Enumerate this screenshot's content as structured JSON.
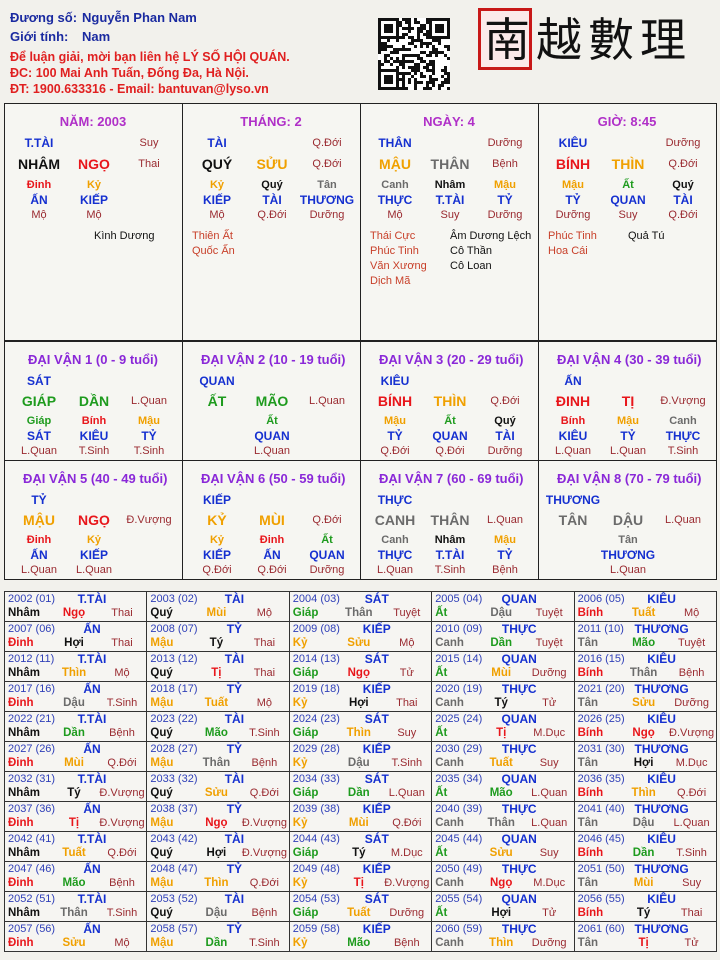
{
  "header": {
    "name_label": "Đương số:",
    "name": "Nguyễn Phan Nam",
    "gender_label": "Giới tính:",
    "gender": "Nam",
    "contact_1": "Để luận giải, mời bạn liên hệ LÝ SỐ HỘI QUÁN.",
    "contact_2": "ĐC: 100 Mai Anh Tuấn, Đống Đa, Hà Nội.",
    "contact_3": "ĐT: 1900.633316 - Email: bantuvan@lyso.vn",
    "logo": "南越數理"
  },
  "element_colors": [
    {
      "color": "#111111",
      "words": [
        "Nhâm",
        "Quý",
        "Tý",
        "Hợi"
      ]
    },
    {
      "color": "#1e9b1e",
      "words": [
        "Giáp",
        "Ất",
        "Dần",
        "Mão"
      ]
    },
    {
      "color": "#e8161b",
      "words": [
        "Bính",
        "Đinh",
        "Tị",
        "Ngọ"
      ]
    },
    {
      "color": "#f0a000",
      "words": [
        "Mậu",
        "Kỷ",
        "Thìn",
        "Tuất",
        "Sửu",
        "Mùi"
      ]
    },
    {
      "color": "#6b6b6b",
      "words": [
        "Canh",
        "Tân",
        "Thân",
        "Dậu"
      ]
    }
  ],
  "pillars": [
    {
      "title": "NĂM: 2003",
      "god": "T.TÀI",
      "stage_top": "Suy",
      "stem": "NHÂM",
      "branch": "NGỌ",
      "stage": "Thai",
      "hidden": [
        "Đinh",
        "Kỷ"
      ],
      "hidden_gods": [
        "ẤN",
        "KIẾP"
      ],
      "hidden_stages": [
        "Mộ",
        "Mộ"
      ],
      "stars_right": [
        {
          "text": "Kình Dương",
          "color": "#111111"
        }
      ]
    },
    {
      "title": "THÁNG: 2",
      "god": "TÀI",
      "stage_top": "Q.Đới",
      "stem": "QUÝ",
      "branch": "SỬU",
      "stage": "Q.Đới",
      "hidden": [
        "Kỷ",
        "Quý",
        "Tân"
      ],
      "hidden_gods": [
        "KIẾP",
        "TÀI",
        "THƯƠNG"
      ],
      "hidden_stages": [
        "Mộ",
        "Q.Đới",
        "Dưỡng"
      ],
      "stars_left": [
        {
          "text": "Thiên Ất",
          "color": "#c8402a"
        },
        {
          "text": "Quốc Ấn",
          "color": "#c8402a"
        }
      ]
    },
    {
      "title": "NGÀY: 4",
      "god": "THÂN",
      "stage_top": "Dưỡng",
      "stem": "MẬU",
      "branch": "THÂN",
      "stage": "Bệnh",
      "hidden": [
        "Canh",
        "Nhâm",
        "Mậu"
      ],
      "hidden_gods": [
        "THỰC",
        "T.TÀI",
        "TỶ"
      ],
      "hidden_stages": [
        "Mộ",
        "Suy",
        "Dưỡng"
      ],
      "stars_left": [
        {
          "text": "Thái Cực",
          "color": "#c8402a"
        },
        {
          "text": "Phúc Tinh",
          "color": "#c8402a"
        },
        {
          "text": "Văn Xương",
          "color": "#c8402a"
        },
        {
          "text": "Dịch Mã",
          "color": "#c8402a"
        }
      ],
      "stars_right": [
        {
          "text": "Âm Dương Lệch",
          "color": "#111111"
        },
        {
          "text": "Cô Thần",
          "color": "#111111"
        },
        {
          "text": "Cô Loan",
          "color": "#111111"
        }
      ]
    },
    {
      "title": "GIỜ: 8:45",
      "god": "KIÊU",
      "stage_top": "Dưỡng",
      "stem": "BÍNH",
      "branch": "THÌN",
      "stage": "Q.Đới",
      "hidden": [
        "Mậu",
        "Ất",
        "Quý"
      ],
      "hidden_gods": [
        "TỶ",
        "QUAN",
        "TÀI"
      ],
      "hidden_stages": [
        "Dưỡng",
        "Suy",
        "Q.Đới"
      ],
      "stars_left": [
        {
          "text": "Phúc Tinh",
          "color": "#c8402a"
        },
        {
          "text": "Hoa Cái",
          "color": "#c8402a"
        }
      ],
      "stars_right": [
        {
          "text": "Quả Tú",
          "color": "#111111"
        }
      ]
    }
  ],
  "dai_van": [
    {
      "title": "ĐẠI VẬN 1 (0 - 9 tuổi)",
      "god": "SÁT",
      "stem": "GIÁP",
      "branch": "DẦN",
      "stage": "L.Quan",
      "hidden": [
        "Giáp",
        "Bính",
        "Mậu"
      ],
      "hidden_gods": [
        "SÁT",
        "KIÊU",
        "TỶ"
      ],
      "hidden_stages": [
        "L.Quan",
        "T.Sinh",
        "T.Sinh"
      ]
    },
    {
      "title": "ĐẠI VẬN 2 (10 - 19 tuổi)",
      "god": "QUAN",
      "stem": "ẤT",
      "branch": "MÃO",
      "stage": "L.Quan",
      "hidden": [
        "Ất"
      ],
      "hidden_gods": [
        "QUAN"
      ],
      "hidden_stages": [
        "L.Quan"
      ]
    },
    {
      "title": "ĐẠI VẬN 3 (20 - 29 tuổi)",
      "god": "KIÊU",
      "stem": "BÍNH",
      "branch": "THÌN",
      "stage": "Q.Đới",
      "hidden": [
        "Mậu",
        "Ất",
        "Quý"
      ],
      "hidden_gods": [
        "TỶ",
        "QUAN",
        "TÀI"
      ],
      "hidden_stages": [
        "Q.Đới",
        "Q.Đới",
        "Dưỡng"
      ]
    },
    {
      "title": "ĐẠI VẬN 4 (30 - 39 tuổi)",
      "god": "ẤN",
      "stem": "ĐINH",
      "branch": "TỊ",
      "stage": "Đ.Vượng",
      "hidden": [
        "Bính",
        "Mậu",
        "Canh"
      ],
      "hidden_gods": [
        "KIÊU",
        "TỶ",
        "THỰC"
      ],
      "hidden_stages": [
        "L.Quan",
        "L.Quan",
        "T.Sinh"
      ]
    },
    {
      "title": "ĐẠI VẬN 5 (40 - 49 tuổi)",
      "god": "TỶ",
      "stem": "MẬU",
      "branch": "NGỌ",
      "stage": "Đ.Vượng",
      "hidden": [
        "Đinh",
        "Kỷ"
      ],
      "hidden_gods": [
        "ẤN",
        "KIẾP"
      ],
      "hidden_stages": [
        "L.Quan",
        "L.Quan"
      ]
    },
    {
      "title": "ĐẠI VẬN 6 (50 - 59 tuổi)",
      "god": "KIẾP",
      "stem": "KỶ",
      "branch": "MÙI",
      "stage": "Q.Đới",
      "hidden": [
        "Kỷ",
        "Đinh",
        "Ất"
      ],
      "hidden_gods": [
        "KIẾP",
        "ẤN",
        "QUAN"
      ],
      "hidden_stages": [
        "Q.Đới",
        "Q.Đới",
        "Dưỡng"
      ]
    },
    {
      "title": "ĐẠI VẬN 7 (60 - 69 tuổi)",
      "god": "THỰC",
      "stem": "CANH",
      "branch": "THÂN",
      "stage": "L.Quan",
      "hidden": [
        "Canh",
        "Nhâm",
        "Mậu"
      ],
      "hidden_gods": [
        "THỰC",
        "T.TÀI",
        "TỶ"
      ],
      "hidden_stages": [
        "L.Quan",
        "T.Sinh",
        "Bệnh"
      ]
    },
    {
      "title": "ĐẠI VẬN 8 (70 - 79 tuổi)",
      "god": "THƯƠNG",
      "stem": "TÂN",
      "branch": "DẬU",
      "stage": "L.Quan",
      "hidden": [
        "Tân"
      ],
      "hidden_gods": [
        "THƯƠNG"
      ],
      "hidden_stages": [
        "L.Quan"
      ]
    }
  ],
  "years": [
    [
      "2002 (01)",
      "T.TÀI",
      "Nhâm",
      "Ngọ",
      "Thai"
    ],
    [
      "2003 (02)",
      "TÀI",
      "Quý",
      "Mùi",
      "Mộ"
    ],
    [
      "2004 (03)",
      "SÁT",
      "Giáp",
      "Thân",
      "Tuyệt"
    ],
    [
      "2005 (04)",
      "QUAN",
      "Ất",
      "Dậu",
      "Tuyệt"
    ],
    [
      "2006 (05)",
      "KIÊU",
      "Bính",
      "Tuất",
      "Mộ"
    ],
    [
      "2007 (06)",
      "ẤN",
      "Đinh",
      "Hợi",
      "Thai"
    ],
    [
      "2008 (07)",
      "TỶ",
      "Mậu",
      "Tý",
      "Thai"
    ],
    [
      "2009 (08)",
      "KIẾP",
      "Kỷ",
      "Sửu",
      "Mộ"
    ],
    [
      "2010 (09)",
      "THỰC",
      "Canh",
      "Dần",
      "Tuyệt"
    ],
    [
      "2011 (10)",
      "THƯƠNG",
      "Tân",
      "Mão",
      "Tuyệt"
    ],
    [
      "2012 (11)",
      "T.TÀI",
      "Nhâm",
      "Thìn",
      "Mộ"
    ],
    [
      "2013 (12)",
      "TÀI",
      "Quý",
      "Tị",
      "Thai"
    ],
    [
      "2014 (13)",
      "SÁT",
      "Giáp",
      "Ngọ",
      "Tử"
    ],
    [
      "2015 (14)",
      "QUAN",
      "Ất",
      "Mùi",
      "Dưỡng"
    ],
    [
      "2016 (15)",
      "KIÊU",
      "Bính",
      "Thân",
      "Bệnh"
    ],
    [
      "2017 (16)",
      "ẤN",
      "Đinh",
      "Dậu",
      "T.Sinh"
    ],
    [
      "2018 (17)",
      "TỶ",
      "Mậu",
      "Tuất",
      "Mộ"
    ],
    [
      "2019 (18)",
      "KIẾP",
      "Kỷ",
      "Hợi",
      "Thai"
    ],
    [
      "2020 (19)",
      "THỰC",
      "Canh",
      "Tý",
      "Tử"
    ],
    [
      "2021 (20)",
      "THƯƠNG",
      "Tân",
      "Sửu",
      "Dưỡng"
    ],
    [
      "2022 (21)",
      "T.TÀI",
      "Nhâm",
      "Dần",
      "Bệnh"
    ],
    [
      "2023 (22)",
      "TÀI",
      "Quý",
      "Mão",
      "T.Sinh"
    ],
    [
      "2024 (23)",
      "SÁT",
      "Giáp",
      "Thìn",
      "Suy"
    ],
    [
      "2025 (24)",
      "QUAN",
      "Ất",
      "Tị",
      "M.Dục"
    ],
    [
      "2026 (25)",
      "KIÊU",
      "Bính",
      "Ngọ",
      "Đ.Vượng"
    ],
    [
      "2027 (26)",
      "ẤN",
      "Đinh",
      "Mùi",
      "Q.Đới"
    ],
    [
      "2028 (27)",
      "TỶ",
      "Mậu",
      "Thân",
      "Bệnh"
    ],
    [
      "2029 (28)",
      "KIẾP",
      "Kỷ",
      "Dậu",
      "T.Sinh"
    ],
    [
      "2030 (29)",
      "THỰC",
      "Canh",
      "Tuất",
      "Suy"
    ],
    [
      "2031 (30)",
      "THƯƠNG",
      "Tân",
      "Hợi",
      "M.Dục"
    ],
    [
      "2032 (31)",
      "T.TÀI",
      "Nhâm",
      "Tý",
      "Đ.Vượng"
    ],
    [
      "2033 (32)",
      "TÀI",
      "Quý",
      "Sửu",
      "Q.Đới"
    ],
    [
      "2034 (33)",
      "SÁT",
      "Giáp",
      "Dần",
      "L.Quan"
    ],
    [
      "2035 (34)",
      "QUAN",
      "Ất",
      "Mão",
      "L.Quan"
    ],
    [
      "2036 (35)",
      "KIÊU",
      "Bính",
      "Thìn",
      "Q.Đới"
    ],
    [
      "2037 (36)",
      "ẤN",
      "Đinh",
      "Tị",
      "Đ.Vượng"
    ],
    [
      "2038 (37)",
      "TỶ",
      "Mậu",
      "Ngọ",
      "Đ.Vượng"
    ],
    [
      "2039 (38)",
      "KIẾP",
      "Kỷ",
      "Mùi",
      "Q.Đới"
    ],
    [
      "2040 (39)",
      "THỰC",
      "Canh",
      "Thân",
      "L.Quan"
    ],
    [
      "2041 (40)",
      "THƯƠNG",
      "Tân",
      "Dậu",
      "L.Quan"
    ],
    [
      "2042 (41)",
      "T.TÀI",
      "Nhâm",
      "Tuất",
      "Q.Đới"
    ],
    [
      "2043 (42)",
      "TÀI",
      "Quý",
      "Hợi",
      "Đ.Vượng"
    ],
    [
      "2044 (43)",
      "SÁT",
      "Giáp",
      "Tý",
      "M.Dục"
    ],
    [
      "2045 (44)",
      "QUAN",
      "Ất",
      "Sửu",
      "Suy"
    ],
    [
      "2046 (45)",
      "KIÊU",
      "Bính",
      "Dần",
      "T.Sinh"
    ],
    [
      "2047 (46)",
      "ẤN",
      "Đinh",
      "Mão",
      "Bệnh"
    ],
    [
      "2048 (47)",
      "TỶ",
      "Mậu",
      "Thìn",
      "Q.Đới"
    ],
    [
      "2049 (48)",
      "KIẾP",
      "Kỷ",
      "Tị",
      "Đ.Vượng"
    ],
    [
      "2050 (49)",
      "THỰC",
      "Canh",
      "Ngọ",
      "M.Dục"
    ],
    [
      "2051 (50)",
      "THƯƠNG",
      "Tân",
      "Mùi",
      "Suy"
    ],
    [
      "2052 (51)",
      "T.TÀI",
      "Nhâm",
      "Thân",
      "T.Sinh"
    ],
    [
      "2053 (52)",
      "TÀI",
      "Quý",
      "Dậu",
      "Bệnh"
    ],
    [
      "2054 (53)",
      "SÁT",
      "Giáp",
      "Tuất",
      "Dưỡng"
    ],
    [
      "2055 (54)",
      "QUAN",
      "Ất",
      "Hợi",
      "Tử"
    ],
    [
      "2056 (55)",
      "KIÊU",
      "Bính",
      "Tý",
      "Thai"
    ],
    [
      "2057 (56)",
      "ẤN",
      "Đinh",
      "Sửu",
      "Mộ"
    ],
    [
      "2058 (57)",
      "TỶ",
      "Mậu",
      "Dần",
      "T.Sinh"
    ],
    [
      "2059 (58)",
      "KIẾP",
      "Kỷ",
      "Mão",
      "Bệnh"
    ],
    [
      "2060 (59)",
      "THỰC",
      "Canh",
      "Thìn",
      "Dưỡng"
    ],
    [
      "2061 (60)",
      "THƯƠNG",
      "Tân",
      "Tị",
      "Tử"
    ]
  ]
}
